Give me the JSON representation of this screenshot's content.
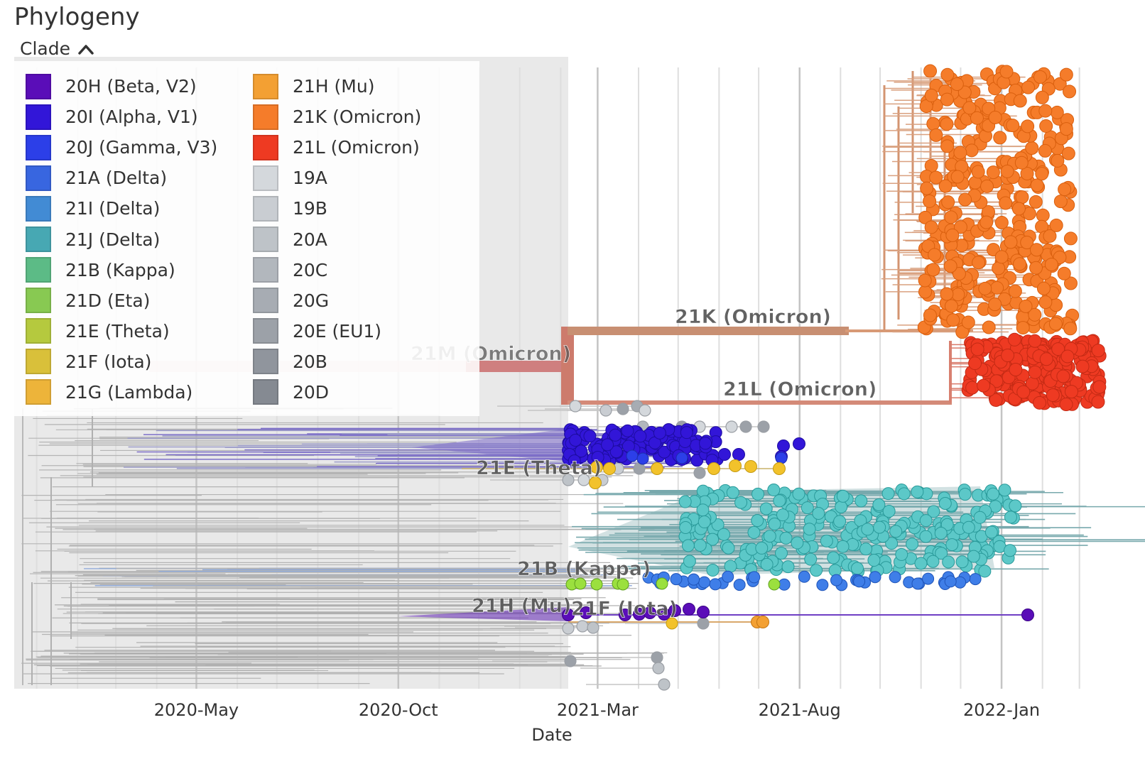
{
  "header": {
    "title": "Phylogeny",
    "legend_toggle_label": "Clade",
    "legend_toggle_icon": "chevron-up-icon"
  },
  "legend": {
    "items": [
      {
        "label": "20H (Beta, V2)",
        "color": "#5A0DB8"
      },
      {
        "label": "20I (Alpha, V1)",
        "color": "#3216D8"
      },
      {
        "label": "20J (Gamma, V3)",
        "color": "#2C3FE8"
      },
      {
        "label": "21A (Delta)",
        "color": "#3866E0"
      },
      {
        "label": "21I (Delta)",
        "color": "#428BD4"
      },
      {
        "label": "21J (Delta)",
        "color": "#47A8B3"
      },
      {
        "label": "21B (Kappa)",
        "color": "#5CBB86"
      },
      {
        "label": "21D (Eta)",
        "color": "#88C952"
      },
      {
        "label": "21E (Theta)",
        "color": "#B5C93E"
      },
      {
        "label": "21F (Iota)",
        "color": "#D9C03A"
      },
      {
        "label": "21G (Lambda)",
        "color": "#EDB43A"
      },
      {
        "label": "21H (Mu)",
        "color": "#F3A033"
      },
      {
        "label": "21K (Omicron)",
        "color": "#F57C2A"
      },
      {
        "label": "21L (Omicron)",
        "color": "#EE3A22"
      },
      {
        "label": "19A",
        "color": "#D4D8DC"
      },
      {
        "label": "19B",
        "color": "#C9CDD2"
      },
      {
        "label": "20A",
        "color": "#BEC3C8"
      },
      {
        "label": "20C",
        "color": "#B2B7BD"
      },
      {
        "label": "20G",
        "color": "#A7ACB3"
      },
      {
        "label": "20E (EU1)",
        "color": "#9CA1A8"
      },
      {
        "label": "20B",
        "color": "#90959D"
      },
      {
        "label": "20D",
        "color": "#858A92"
      }
    ]
  },
  "chart_data": {
    "type": "scatter",
    "title": "Phylogeny",
    "xlabel": "Date",
    "ylabel": "",
    "x_ticks": [
      "2020-May",
      "2020-Oct",
      "2021-Mar",
      "2021-Aug",
      "2022-Jan"
    ],
    "x_axis_range": [
      "2019-12-15",
      "2022-03-20"
    ],
    "grid": true,
    "legend_title": "Clade",
    "legend_position": "top-left",
    "shaded_period_end": "2021-02-20",
    "branch_labels": [
      "21K (Omicron)",
      "21M (Omicron)",
      "21L (Omicron)",
      "21E (Theta)",
      "21B (Kappa)",
      "21H (Mu)",
      "21F (Iota)"
    ],
    "series": [
      {
        "clade": "21K (Omicron)",
        "color": "#F57C2A",
        "x_range": [
          "2021-11-15",
          "2022-03-15"
        ],
        "band": "upper-right"
      },
      {
        "clade": "21L (Omicron)",
        "color": "#EE3A22",
        "x_range": [
          "2021-12-20",
          "2022-03-20"
        ],
        "band": "right"
      },
      {
        "clade": "20I (Alpha, V1)",
        "color": "#3216D8",
        "x_range": [
          "2021-02-20",
          "2021-09-10"
        ],
        "band": "middle"
      },
      {
        "clade": "21E (Theta)",
        "color": "#B5C93E",
        "x_range": [
          "2021-02-25",
          "2021-08-15"
        ],
        "band": "middle"
      },
      {
        "clade": "21J (Delta)",
        "color": "#47A8B3",
        "x_range": [
          "2021-06-10",
          "2022-02-10"
        ],
        "band": "lower-right"
      },
      {
        "clade": "21A (Delta)",
        "color": "#3866E0",
        "x_range": [
          "2021-03-01",
          "2021-12-30"
        ],
        "band": "lower-middle"
      },
      {
        "clade": "21D (Eta)",
        "color": "#88C952",
        "x_range": [
          "2021-02-20",
          "2021-08-05"
        ],
        "band": "lower-middle"
      },
      {
        "clade": "20H (Beta, V2)",
        "color": "#5A0DB8",
        "x_range": [
          "2021-02-20",
          "2022-02-15"
        ],
        "band": "lower"
      },
      {
        "clade": "21F (Iota)",
        "color": "#D9C03A",
        "x_range": [
          "2021-03-01",
          "2021-05-25"
        ],
        "band": "lower"
      },
      {
        "clade": "21H (Mu)",
        "color": "#F3A033",
        "x_range": [
          "2021-08-10",
          "2021-08-15"
        ],
        "band": "lower"
      },
      {
        "clade": "19A/19B/20A/20B/20C/20D/20E/20G",
        "color": "#B2B7BD",
        "x_range": [
          "2020-01-01",
          "2021-06-10"
        ],
        "band": "basal"
      }
    ]
  }
}
